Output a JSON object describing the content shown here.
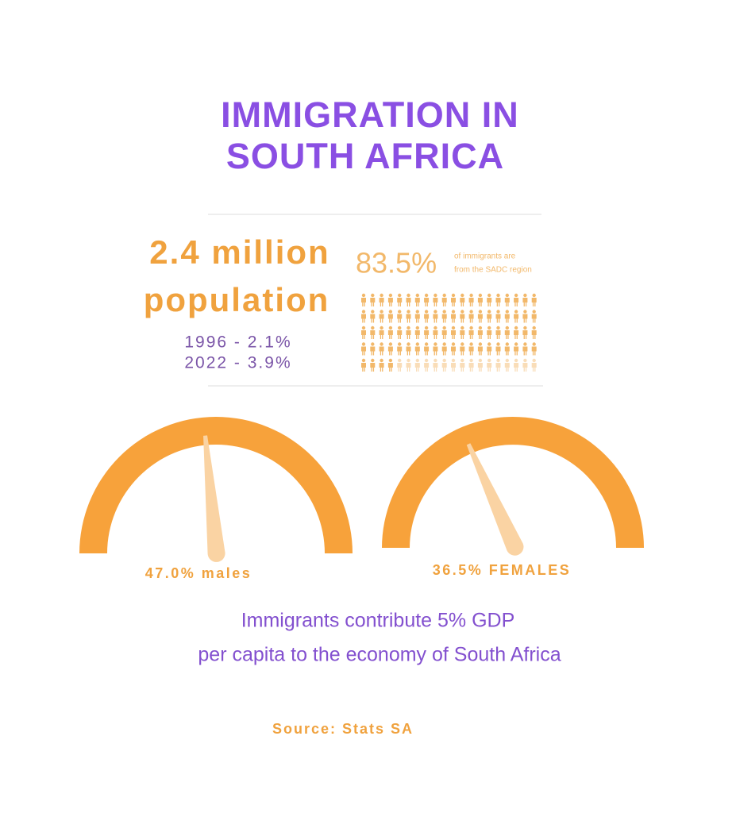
{
  "title_lines": [
    "IMMIGRATION IN",
    "SOUTH AFRICA"
  ],
  "population": {
    "headline": [
      "2.4 million",
      "population"
    ],
    "years": [
      "1996 - 2.1%",
      "2022 - 3.9%"
    ]
  },
  "sadc": {
    "value": 83.5,
    "label": "83.5%",
    "note": [
      "of immigrants are",
      "from the SADC region"
    ]
  },
  "gauges": [
    {
      "value": 47.0,
      "label": "47.0% males"
    },
    {
      "value": 36.5,
      "label": "36.5% FEMALES"
    }
  ],
  "gdp": [
    "Immigrants contribute 5% GDP",
    "per capita to the economy of South Africa"
  ],
  "source": "Source: Stats SA"
}
